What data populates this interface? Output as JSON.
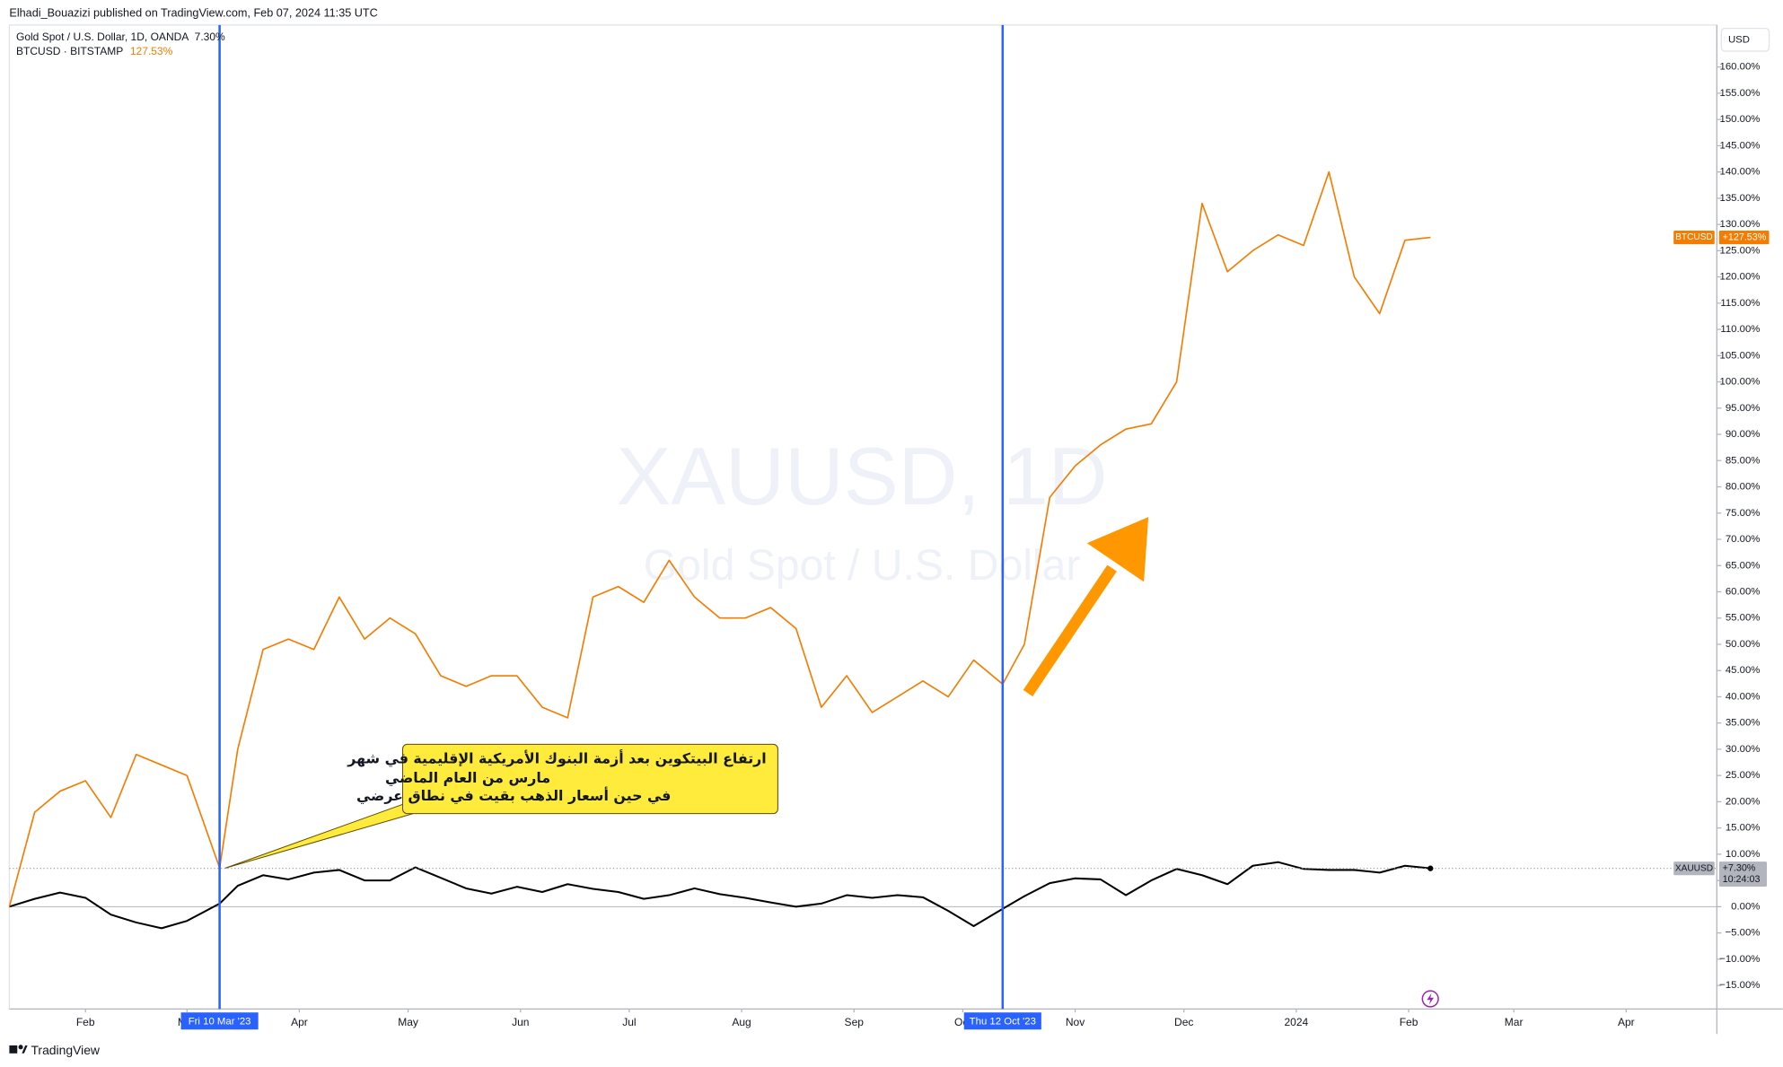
{
  "header": {
    "title": "Elhadi_Bouazizi published on TradingView.com, Feb 07, 2024 11:35 UTC"
  },
  "chart_data": {
    "type": "line",
    "currency": "USD",
    "watermark": {
      "symbol": "XAUUSD, 1D",
      "description": "Gold Spot / U.S. Dollar"
    },
    "x": [
      "2023-01-11",
      "2023-01-18",
      "2023-01-25",
      "2023-02-01",
      "2023-02-08",
      "2023-02-15",
      "2023-02-22",
      "2023-03-01",
      "2023-03-10",
      "2023-03-15",
      "2023-03-22",
      "2023-03-29",
      "2023-04-05",
      "2023-04-12",
      "2023-04-19",
      "2023-04-26",
      "2023-05-03",
      "2023-05-10",
      "2023-05-17",
      "2023-05-24",
      "2023-05-31",
      "2023-06-07",
      "2023-06-14",
      "2023-06-21",
      "2023-06-28",
      "2023-07-05",
      "2023-07-12",
      "2023-07-19",
      "2023-07-26",
      "2023-08-02",
      "2023-08-09",
      "2023-08-16",
      "2023-08-23",
      "2023-08-30",
      "2023-09-06",
      "2023-09-13",
      "2023-09-20",
      "2023-09-27",
      "2023-10-04",
      "2023-10-12",
      "2023-10-18",
      "2023-10-25",
      "2023-11-01",
      "2023-11-08",
      "2023-11-15",
      "2023-11-22",
      "2023-11-29",
      "2023-12-06",
      "2023-12-13",
      "2023-12-20",
      "2023-12-27",
      "2024-01-03",
      "2024-01-10",
      "2024-01-17",
      "2024-01-24",
      "2024-01-31",
      "2024-02-07"
    ],
    "xlim": [
      "2023-01-11",
      "2024-04-26"
    ],
    "xticks": [
      {
        "value": "2023-02-01",
        "label": "Feb"
      },
      {
        "value": "2023-03-01",
        "label": "Mar"
      },
      {
        "value": "2023-04-01",
        "label": "Apr"
      },
      {
        "value": "2023-05-01",
        "label": "May"
      },
      {
        "value": "2023-06-01",
        "label": "Jun"
      },
      {
        "value": "2023-07-01",
        "label": "Jul"
      },
      {
        "value": "2023-08-01",
        "label": "Aug"
      },
      {
        "value": "2023-09-01",
        "label": "Sep"
      },
      {
        "value": "2023-10-01",
        "label": "Oct"
      },
      {
        "value": "2023-11-01",
        "label": "Nov"
      },
      {
        "value": "2023-12-01",
        "label": "Dec"
      },
      {
        "value": "2024-01-01",
        "label": "2024"
      },
      {
        "value": "2024-02-01",
        "label": "Feb"
      },
      {
        "value": "2024-03-01",
        "label": "Mar"
      },
      {
        "value": "2024-04-01",
        "label": "Apr"
      }
    ],
    "ylim": [
      -19.5,
      168
    ],
    "yticks": [
      {
        "value": -15,
        "label": "−15.00%"
      },
      {
        "value": -10,
        "label": "−10.00%"
      },
      {
        "value": -5,
        "label": "−5.00%"
      },
      {
        "value": 0,
        "label": "0.00%"
      },
      {
        "value": 5,
        "label": "5.00%"
      },
      {
        "value": 10,
        "label": "10.00%"
      },
      {
        "value": 15,
        "label": "15.00%"
      },
      {
        "value": 20,
        "label": "20.00%"
      },
      {
        "value": 25,
        "label": "25.00%"
      },
      {
        "value": 30,
        "label": "30.00%"
      },
      {
        "value": 35,
        "label": "35.00%"
      },
      {
        "value": 40,
        "label": "40.00%"
      },
      {
        "value": 45,
        "label": "45.00%"
      },
      {
        "value": 50,
        "label": "50.00%"
      },
      {
        "value": 55,
        "label": "55.00%"
      },
      {
        "value": 60,
        "label": "60.00%"
      },
      {
        "value": 65,
        "label": "65.00%"
      },
      {
        "value": 70,
        "label": "70.00%"
      },
      {
        "value": 75,
        "label": "75.00%"
      },
      {
        "value": 80,
        "label": "80.00%"
      },
      {
        "value": 85,
        "label": "85.00%"
      },
      {
        "value": 90,
        "label": "90.00%"
      },
      {
        "value": 95,
        "label": "95.00%"
      },
      {
        "value": 100,
        "label": "100.00%"
      },
      {
        "value": 105,
        "label": "105.00%"
      },
      {
        "value": 110,
        "label": "110.00%"
      },
      {
        "value": 115,
        "label": "115.00%"
      },
      {
        "value": 120,
        "label": "120.00%"
      },
      {
        "value": 125,
        "label": "125.00%"
      },
      {
        "value": 130,
        "label": "130.00%"
      },
      {
        "value": 135,
        "label": "135.00%"
      },
      {
        "value": 140,
        "label": "140.00%"
      },
      {
        "value": 145,
        "label": "145.00%"
      },
      {
        "value": 150,
        "label": "150.00%"
      },
      {
        "value": 155,
        "label": "155.00%"
      },
      {
        "value": 160,
        "label": "160.00%"
      }
    ],
    "grid": false,
    "series": [
      {
        "name": "Gold Spot / U.S. Dollar, 1D, OANDA",
        "short_name": "XAUUSD",
        "color": "#000000",
        "legend_value": "7.30%",
        "price_label": "+7.30%",
        "countdown": "10:24:03",
        "values": [
          0,
          1.5,
          2.7,
          1.7,
          -1.5,
          -3,
          -4.1,
          -2.7,
          0.6,
          4,
          6,
          5.2,
          6.5,
          7,
          5,
          5,
          7.5,
          5.5,
          3.5,
          2.5,
          3.8,
          2.8,
          4.3,
          3.4,
          2.8,
          1.5,
          2.2,
          3.5,
          2.4,
          1.7,
          0.8,
          0,
          0.6,
          2.2,
          1.7,
          2.2,
          1.8,
          -0.8,
          -3.7,
          -0.4,
          2,
          4.5,
          5.4,
          5.2,
          2.2,
          5,
          7.2,
          6,
          4.3,
          7.8,
          8.5,
          7.2,
          7,
          7,
          6.5,
          7.8,
          7.3
        ]
      },
      {
        "name": "BTCUSD · BITSTAMP",
        "short_name": "BTCUSD",
        "color": "#f57c00",
        "legend_value": "127.53%",
        "price_label": "+127.53%",
        "values": [
          0,
          18,
          22,
          24,
          17,
          29,
          27,
          25,
          7.4,
          30,
          49,
          51,
          49,
          59,
          51,
          55,
          52,
          44,
          42,
          44,
          44,
          38,
          36,
          59,
          61,
          58,
          66,
          59,
          55,
          55,
          57,
          53,
          38,
          44,
          37,
          40,
          43,
          40,
          47,
          42.4,
          50,
          78,
          84,
          88,
          91,
          92,
          100,
          134,
          121,
          125,
          128,
          126,
          140,
          120,
          113,
          127,
          127.53
        ]
      }
    ],
    "markers": [
      {
        "date": "2023-03-10",
        "label": "Fri 10 Mar '23"
      },
      {
        "date": "2023-10-12",
        "label": "Thu 12 Oct '23"
      }
    ],
    "marker_color": "#2962ff",
    "annotation": {
      "lines": [
        "ارتفاع البيتكوين بعد أزمة البنوك الأمريكية الإقليمية في شهر",
        "مارس من العام الماضي",
        "في حين أسعار الذهب بقيت في نطاق عرضي"
      ]
    }
  },
  "footer": {
    "brand": "TradingView"
  }
}
